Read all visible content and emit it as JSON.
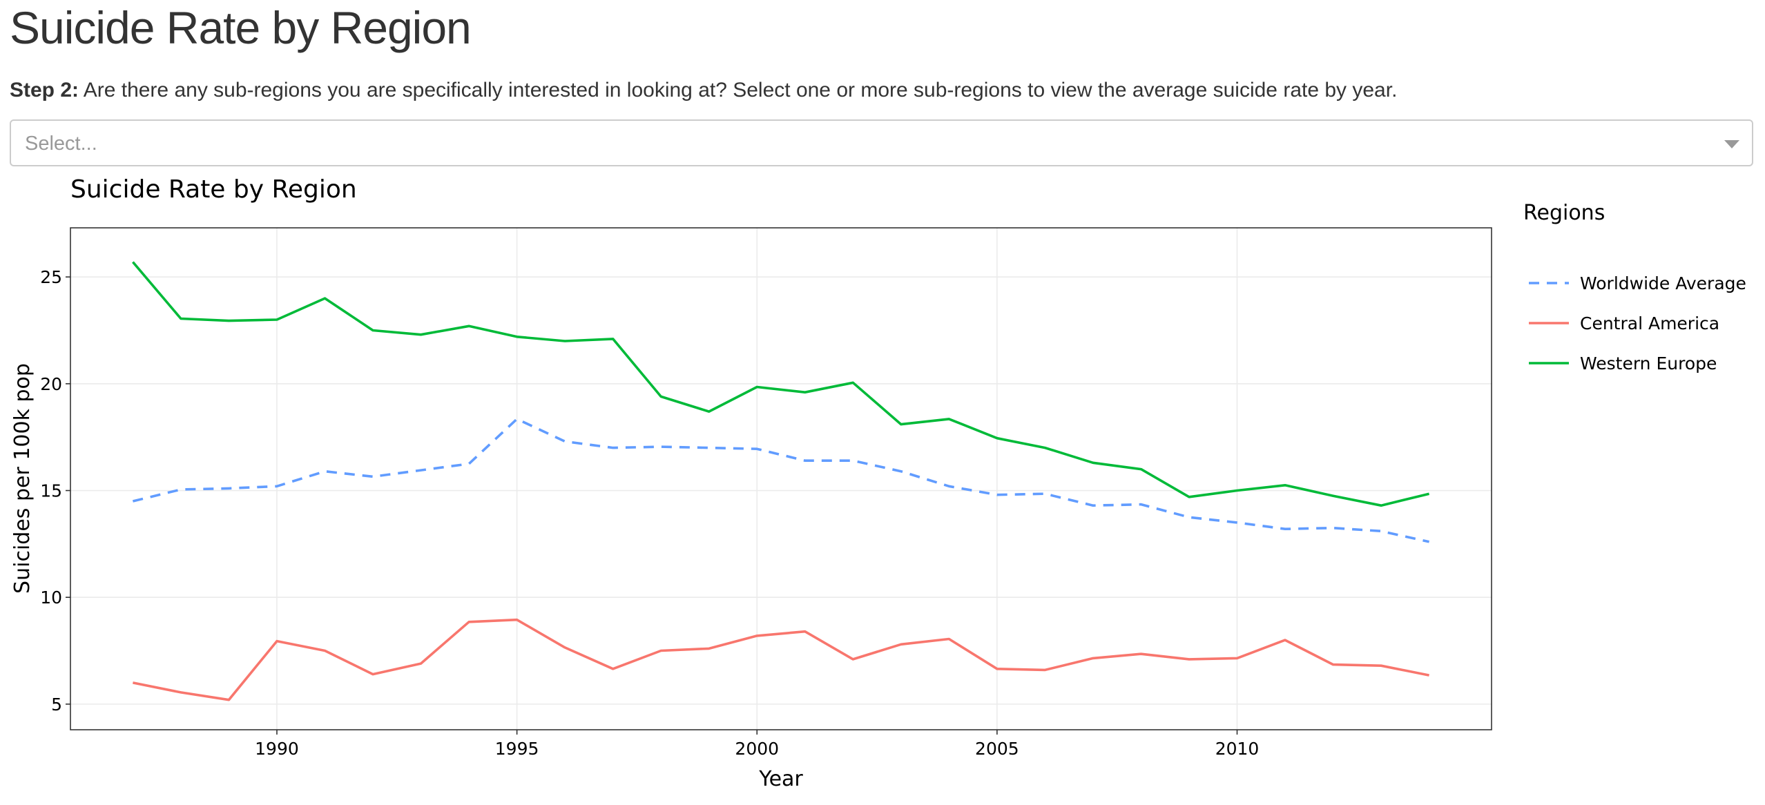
{
  "page": {
    "title": "Suicide Rate by Region",
    "step_label": "Step 2:",
    "step_text": " Are there any sub-regions you are specifically interested in looking at? Select one or more sub-regions to view the average suicide rate by year."
  },
  "select": {
    "placeholder": "Select..."
  },
  "colors": {
    "worldwide": "#619CFF",
    "central_america": "#F8766D",
    "western_europe": "#00BA38",
    "grid": "#EBEBEB",
    "panel_border": "#333333"
  },
  "chart_data": {
    "type": "line",
    "title": "Suicide Rate by Region",
    "xlabel": "Year",
    "ylabel": "Suicides per 100k pop",
    "xlim": [
      1985.7,
      2015.3
    ],
    "ylim": [
      3.8,
      27.3
    ],
    "xticks": [
      1990,
      1995,
      2000,
      2005,
      2010
    ],
    "yticks": [
      5,
      10,
      15,
      20,
      25
    ],
    "grid": true,
    "legend": {
      "title": "Regions",
      "position": "right"
    },
    "x": [
      1987,
      1988,
      1989,
      1990,
      1991,
      1992,
      1993,
      1994,
      1995,
      1996,
      1997,
      1998,
      1999,
      2000,
      2001,
      2002,
      2003,
      2004,
      2005,
      2006,
      2007,
      2008,
      2009,
      2010,
      2011,
      2012,
      2013,
      2014
    ],
    "series": [
      {
        "name": "Worldwide Average",
        "key": "worldwide",
        "dash": "dashed",
        "values": [
          14.5,
          15.05,
          15.1,
          15.2,
          15.9,
          15.65,
          15.95,
          16.25,
          18.35,
          17.3,
          17.0,
          17.05,
          17.0,
          16.95,
          16.4,
          16.4,
          15.9,
          15.2,
          14.8,
          14.85,
          14.3,
          14.35,
          13.75,
          13.5,
          13.2,
          13.25,
          13.1,
          12.6
        ]
      },
      {
        "name": "Central America",
        "key": "central_america",
        "dash": "solid",
        "values": [
          6.0,
          5.55,
          5.2,
          7.95,
          7.5,
          6.4,
          6.9,
          8.85,
          8.95,
          7.65,
          6.65,
          7.5,
          7.6,
          8.2,
          8.4,
          7.1,
          7.8,
          8.05,
          6.65,
          6.6,
          7.15,
          7.35,
          7.1,
          7.15,
          8.0,
          6.85,
          6.8,
          6.35
        ]
      },
      {
        "name": "Western Europe",
        "key": "western_europe",
        "dash": "solid",
        "values": [
          25.7,
          23.05,
          22.95,
          23.0,
          24.0,
          22.5,
          22.3,
          22.7,
          22.2,
          22.0,
          22.1,
          19.4,
          18.7,
          19.85,
          19.6,
          20.05,
          18.1,
          18.35,
          17.45,
          17.0,
          16.3,
          16.0,
          14.7,
          15.0,
          15.25,
          14.75,
          14.3,
          14.85
        ]
      }
    ]
  }
}
